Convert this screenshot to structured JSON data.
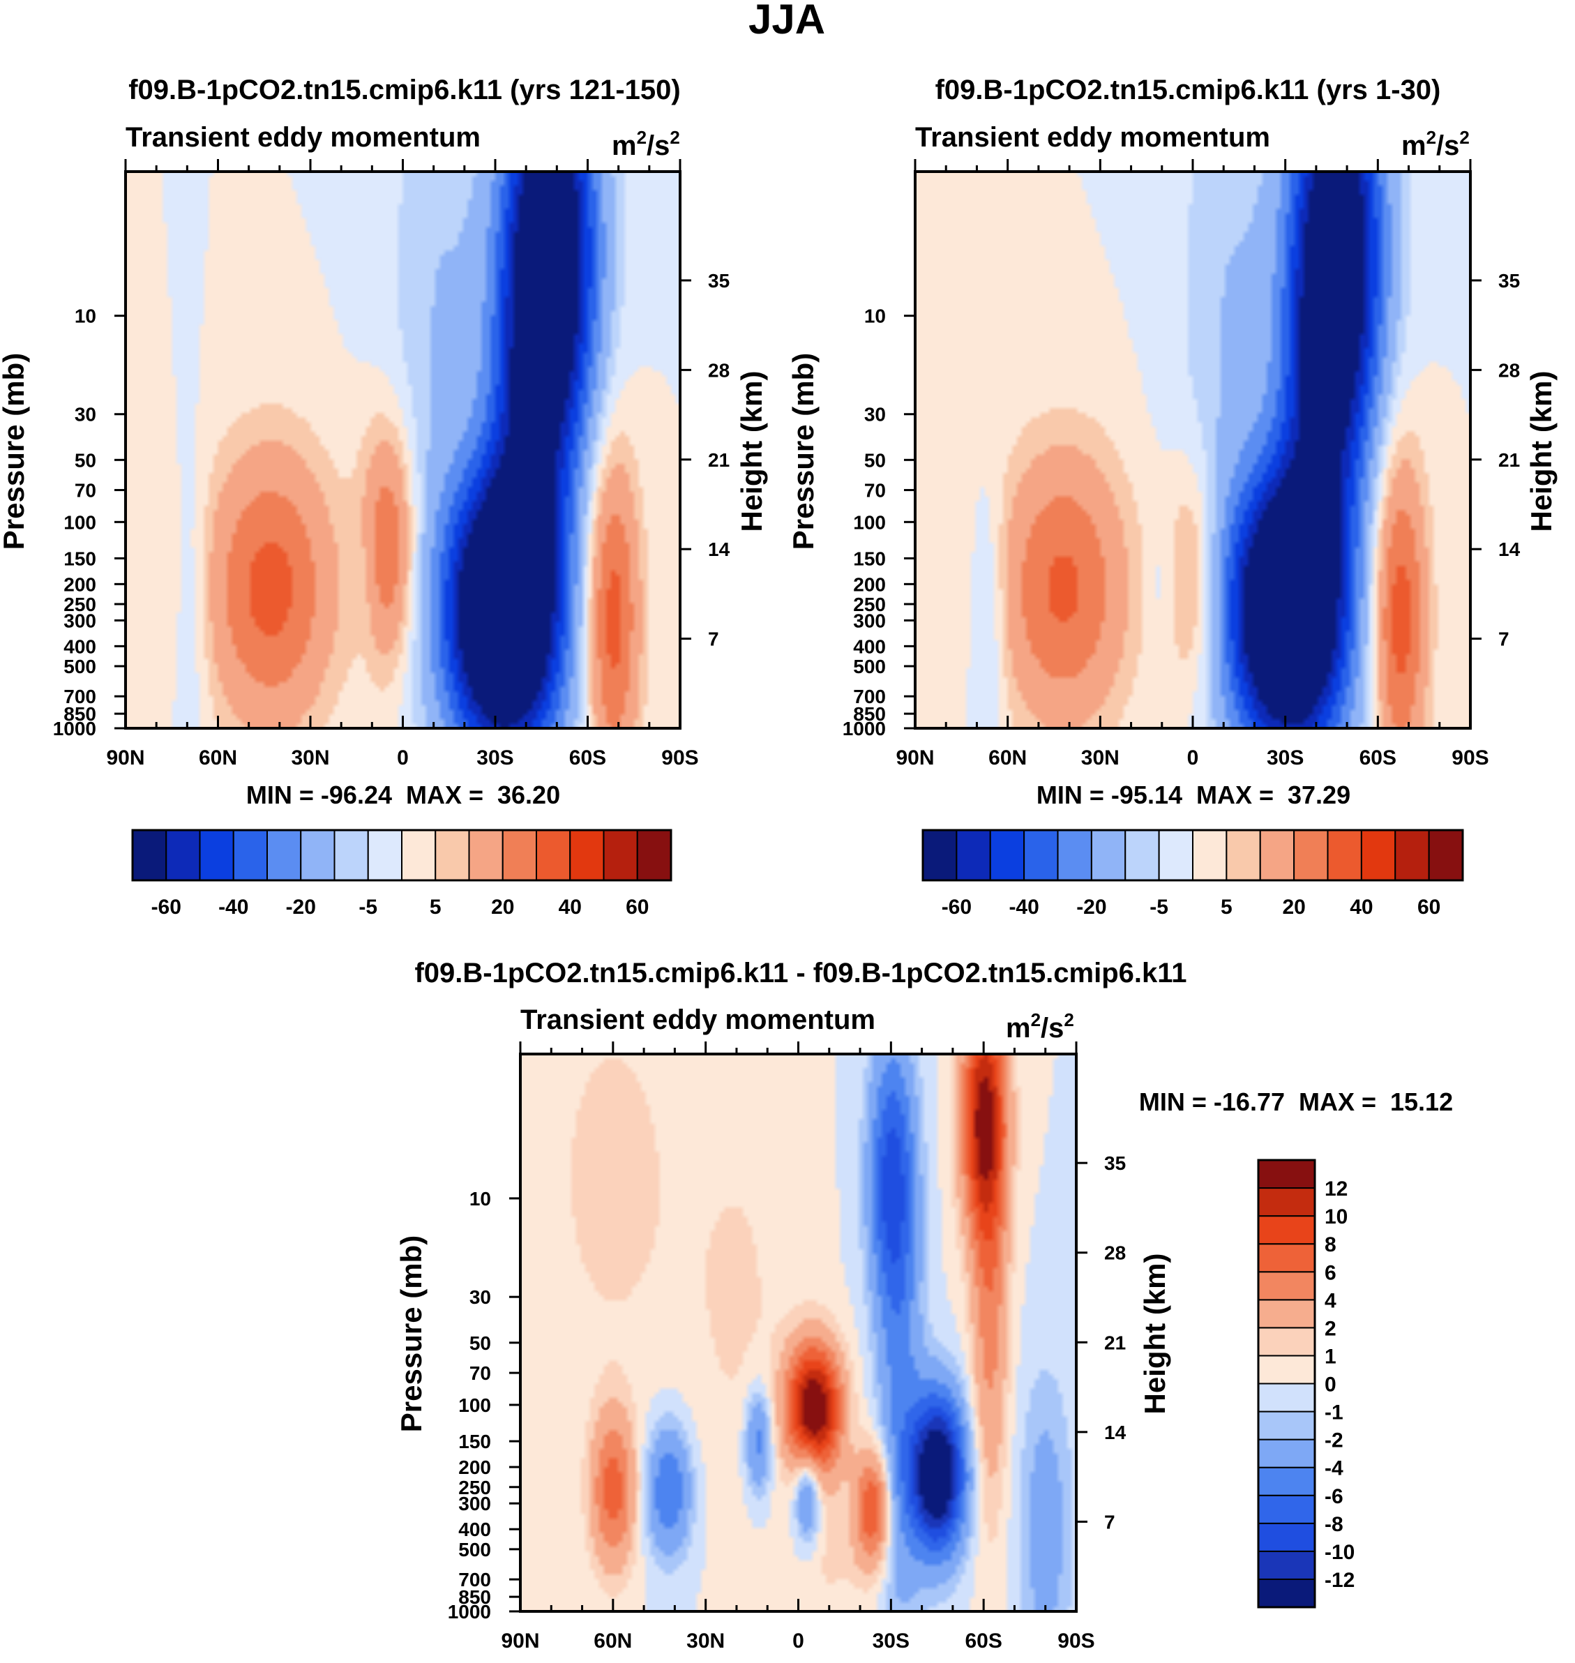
{
  "figure": {
    "title": "JJA"
  },
  "colors": {
    "seq16": [
      "#0a1a7a",
      "#0d2ab8",
      "#0b3fe0",
      "#2a63ea",
      "#5b8df2",
      "#90b4f7",
      "#bcd4fb",
      "#dde9fd",
      "#fde8d8",
      "#f9c9ab",
      "#f5a585",
      "#f07f56",
      "#ec5a2e",
      "#e2380f",
      "#b5200e",
      "#871010"
    ],
    "diff16": [
      "#0a1a7a",
      "#1a36b8",
      "#1f4ee0",
      "#3066ea",
      "#4d84f0",
      "#7ea8f5",
      "#a8c6f9",
      "#d1e1fc",
      "#fde8d8",
      "#fbd2bb",
      "#f6ad8e",
      "#f28660",
      "#ee6238",
      "#e8441a",
      "#c42c0f",
      "#871010"
    ]
  },
  "chart_data": [
    {
      "id": "panel_a",
      "type": "heatmap",
      "title": "f09.B-1pCO2.tn15.cmip6.k11 (yrs 121-150)",
      "left_label": "Transient eddy momentum",
      "right_label": "m",
      "units_sup": "2",
      "units_mid": "/s",
      "xlabel": "",
      "ylabel": "Pressure (mb)",
      "ylabel2": "Height (km)",
      "x_ticks": [
        "90N",
        "60N",
        "30N",
        "0",
        "30S",
        "60S",
        "90S"
      ],
      "y_ticks": [
        "10",
        "30",
        "50",
        "70",
        "100",
        "150",
        "200",
        "250",
        "300",
        "400",
        "500",
        "700",
        "850",
        "1000"
      ],
      "height_ticks": [
        "35",
        "28",
        "21",
        "14",
        "7"
      ],
      "stats": "MIN = -96.24  MAX =  36.20",
      "levels": [
        -70,
        -60,
        -50,
        -40,
        -30,
        -20,
        -10,
        -5,
        0,
        5,
        10,
        20,
        30,
        40,
        50,
        60,
        70
      ],
      "colorbar_labels": [
        "-60",
        "-40",
        "-20",
        "-5",
        "5",
        "20",
        "40",
        "60"
      ],
      "features": [
        {
          "lat": -32,
          "p": 260,
          "amp": -96,
          "wlat": 12,
          "wz": 1.0
        },
        {
          "lat": -48,
          "p": 5,
          "amp": -90,
          "wlat": 10,
          "wz": 1.6
        },
        {
          "lat": -40,
          "p": 40,
          "amp": -35,
          "wlat": 9,
          "wz": 1.6
        },
        {
          "lat": -35,
          "p": 600,
          "amp": -18,
          "wlat": 15,
          "wz": 1.2
        },
        {
          "lat": -68,
          "p": 290,
          "amp": 36,
          "wlat": 6,
          "wz": 1.25
        },
        {
          "lat": 43,
          "p": 210,
          "amp": 34,
          "wlat": 14,
          "wz": 1.05
        },
        {
          "lat": 5,
          "p": 130,
          "amp": 30,
          "wlat": 6,
          "wz": 0.9
        },
        {
          "lat": -12,
          "p": 10,
          "amp": -10,
          "wlat": 12,
          "wz": 2.5
        },
        {
          "lat": 68,
          "p": 250,
          "amp": -7,
          "wlat": 4,
          "wz": 1.2
        },
        {
          "lat": 12,
          "p": 180,
          "amp": -6,
          "wlat": 3,
          "wz": 0.6
        }
      ]
    },
    {
      "id": "panel_b",
      "type": "heatmap",
      "title": "f09.B-1pCO2.tn15.cmip6.k11 (yrs 1-30)",
      "left_label": "Transient eddy momentum",
      "right_label": "m",
      "units_sup": "2",
      "units_mid": "/s",
      "xlabel": "",
      "ylabel": "Pressure (mb)",
      "ylabel2": "Height (km)",
      "x_ticks": [
        "90N",
        "60N",
        "30N",
        "0",
        "30S",
        "60S",
        "90S"
      ],
      "y_ticks": [
        "10",
        "30",
        "50",
        "70",
        "100",
        "150",
        "200",
        "250",
        "300",
        "400",
        "500",
        "700",
        "850",
        "1000"
      ],
      "height_ticks": [
        "35",
        "28",
        "21",
        "14",
        "7"
      ],
      "stats": "MIN = -95.14  MAX =  37.29",
      "levels": [
        -70,
        -60,
        -50,
        -40,
        -30,
        -20,
        -10,
        -5,
        0,
        5,
        10,
        20,
        30,
        40,
        50,
        60,
        70
      ],
      "colorbar_labels": [
        "-60",
        "-40",
        "-20",
        "-5",
        "5",
        "20",
        "40",
        "60"
      ],
      "features": [
        {
          "lat": -30,
          "p": 260,
          "amp": -95,
          "wlat": 12,
          "wz": 1.0
        },
        {
          "lat": -47,
          "p": 5,
          "amp": -85,
          "wlat": 10,
          "wz": 1.6
        },
        {
          "lat": -40,
          "p": 40,
          "amp": -33,
          "wlat": 9,
          "wz": 1.6
        },
        {
          "lat": -34,
          "p": 600,
          "amp": -18,
          "wlat": 15,
          "wz": 1.2
        },
        {
          "lat": -67,
          "p": 290,
          "amp": 37,
          "wlat": 6,
          "wz": 1.25
        },
        {
          "lat": 42,
          "p": 210,
          "amp": 32,
          "wlat": 14,
          "wz": 1.05
        },
        {
          "lat": 0,
          "p": 190,
          "amp": 16,
          "wlat": 6,
          "wz": 0.9
        },
        {
          "lat": -12,
          "p": 10,
          "amp": -10,
          "wlat": 12,
          "wz": 2.5
        },
        {
          "lat": 66,
          "p": 280,
          "amp": -10,
          "wlat": 4,
          "wz": 1.0
        },
        {
          "lat": 10,
          "p": 200,
          "amp": -5,
          "wlat": 3,
          "wz": 0.6
        }
      ]
    },
    {
      "id": "panel_diff",
      "type": "heatmap",
      "title": "f09.B-1pCO2.tn15.cmip6.k11 - f09.B-1pCO2.tn15.cmip6.k11",
      "left_label": "Transient eddy momentum",
      "right_label": "m",
      "units_sup": "2",
      "units_mid": "/s",
      "xlabel": "",
      "ylabel": "Pressure (mb)",
      "ylabel2": "Height (km)",
      "x_ticks": [
        "90N",
        "60N",
        "30N",
        "0",
        "30S",
        "60S",
        "90S"
      ],
      "y_ticks": [
        "10",
        "30",
        "50",
        "70",
        "100",
        "150",
        "200",
        "250",
        "300",
        "400",
        "500",
        "700",
        "850",
        "1000"
      ],
      "height_ticks": [
        "35",
        "28",
        "21",
        "14",
        "7"
      ],
      "stats": "MIN = -16.77  MAX =  15.12",
      "levels": [
        -14,
        -12,
        -10,
        -8,
        -6,
        -4,
        -2,
        -1,
        0,
        1,
        2,
        4,
        6,
        8,
        10,
        12,
        14
      ],
      "colorbar_labels": [
        "12",
        "10",
        "8",
        "6",
        "4",
        "2",
        "1",
        "0",
        "-1",
        "-2",
        "-4",
        "-6",
        "-8",
        "-10",
        "-12"
      ],
      "features": [
        {
          "lat": -5,
          "p": 105,
          "amp": 15,
          "wlat": 6,
          "wz": 0.5
        },
        {
          "lat": -45,
          "p": 215,
          "amp": -16.7,
          "wlat": 6,
          "wz": 0.6
        },
        {
          "lat": -60,
          "p": 4,
          "amp": 12,
          "wlat": 5,
          "wz": 0.9
        },
        {
          "lat": -62,
          "p": 30,
          "amp": 5,
          "wlat": 4,
          "wz": 1.6
        },
        {
          "lat": -30,
          "p": 8,
          "amp": -8,
          "wlat": 5,
          "wz": 1.0
        },
        {
          "lat": -33,
          "p": 80,
          "amp": -4,
          "wlat": 5,
          "wz": 2.0
        },
        {
          "lat": -24,
          "p": 320,
          "amp": 8,
          "wlat": 4,
          "wz": 0.45
        },
        {
          "lat": 60,
          "p": 260,
          "amp": 7,
          "wlat": 5,
          "wz": 0.6
        },
        {
          "lat": 42,
          "p": 260,
          "amp": -6,
          "wlat": 5,
          "wz": 0.5
        },
        {
          "lat": -3,
          "p": 260,
          "amp": -6,
          "wlat": 3,
          "wz": 0.4
        },
        {
          "lat": 13,
          "p": 150,
          "amp": -5,
          "wlat": 3,
          "wz": 0.4
        },
        {
          "lat": -80,
          "p": 400,
          "amp": -3,
          "wlat": 6,
          "wz": 1.2
        },
        {
          "lat": 60,
          "p": 8,
          "amp": 1.5,
          "wlat": 15,
          "wz": 1.5
        },
        {
          "lat": 20,
          "p": 30,
          "amp": 1.2,
          "wlat": 12,
          "wz": 1.5
        },
        {
          "lat": -10,
          "p": 500,
          "amp": 1.2,
          "wlat": 8,
          "wz": 0.6
        }
      ]
    }
  ]
}
